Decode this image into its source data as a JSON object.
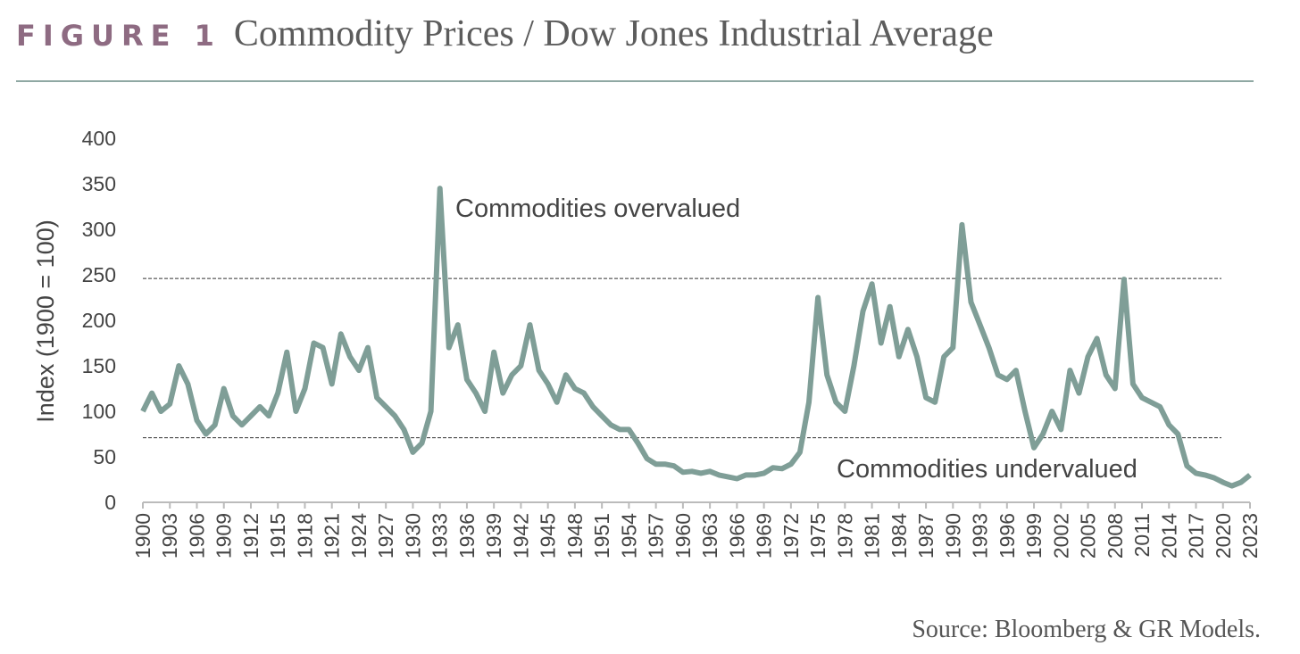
{
  "chart_data": {
    "type": "line",
    "figure_label": "FIGURE 1",
    "title": "Commodity Prices / Dow Jones Industrial Average",
    "y_label": "Index (1900 = 100)",
    "source": "Source: Bloomberg & GR Models.",
    "annotations": [
      "Commodities overvalued",
      "Commodities undervalued"
    ],
    "reference_lines": [
      246,
      71
    ],
    "color": "#7f9e97",
    "x": [
      1900,
      1901,
      1902,
      1903,
      1904,
      1905,
      1906,
      1907,
      1908,
      1909,
      1910,
      1911,
      1912,
      1913,
      1914,
      1915,
      1916,
      1917,
      1918,
      1919,
      1920,
      1921,
      1922,
      1923,
      1924,
      1925,
      1926,
      1927,
      1928,
      1929,
      1930,
      1931,
      1932,
      1933,
      1934,
      1935,
      1936,
      1937,
      1938,
      1939,
      1940,
      1941,
      1942,
      1943,
      1944,
      1945,
      1946,
      1947,
      1948,
      1949,
      1950,
      1951,
      1952,
      1953,
      1954,
      1955,
      1956,
      1957,
      1958,
      1959,
      1960,
      1961,
      1962,
      1963,
      1964,
      1965,
      1966,
      1967,
      1968,
      1969,
      1970,
      1971,
      1972,
      1973,
      1974,
      1975,
      1976,
      1977,
      1978,
      1979,
      1980,
      1981,
      1982,
      1983,
      1984,
      1985,
      1986,
      1987,
      1988,
      1989,
      1990,
      1991,
      1992,
      1993,
      1994,
      1995,
      1996,
      1997,
      1998,
      1999,
      2000,
      2001,
      2002,
      2003,
      2004,
      2005,
      2006,
      2007,
      2008,
      2009,
      2010,
      2011,
      2012,
      2013,
      2014,
      2015,
      2016,
      2017,
      2018,
      2019,
      2020,
      2021,
      2022,
      2023
    ],
    "values": [
      100,
      120,
      100,
      108,
      150,
      130,
      90,
      75,
      85,
      125,
      95,
      85,
      95,
      105,
      95,
      120,
      165,
      100,
      125,
      175,
      170,
      130,
      185,
      160,
      145,
      170,
      115,
      105,
      95,
      80,
      55,
      65,
      100,
      345,
      170,
      195,
      135,
      120,
      100,
      165,
      120,
      140,
      150,
      195,
      145,
      130,
      110,
      140,
      125,
      120,
      105,
      95,
      85,
      80,
      80,
      65,
      48,
      42,
      42,
      40,
      33,
      34,
      32,
      34,
      30,
      28,
      26,
      30,
      30,
      32,
      38,
      37,
      42,
      55,
      110,
      225,
      140,
      110,
      100,
      150,
      210,
      240,
      175,
      215,
      160,
      190,
      160,
      115,
      110,
      160,
      170,
      305,
      220,
      195,
      170,
      140,
      135,
      145,
      100,
      60,
      75,
      100,
      80,
      145,
      120,
      160,
      180,
      140,
      125,
      245,
      130,
      115,
      110,
      105,
      85,
      75,
      40,
      32,
      30,
      27,
      22,
      18,
      22,
      30
    ],
    "xlim": [
      1900,
      2023
    ],
    "xticks": [
      1900,
      1903,
      1906,
      1909,
      1912,
      1915,
      1918,
      1921,
      1924,
      1927,
      1930,
      1933,
      1936,
      1939,
      1942,
      1945,
      1948,
      1951,
      1954,
      1957,
      1960,
      1963,
      1966,
      1969,
      1972,
      1975,
      1978,
      1981,
      1984,
      1987,
      1990,
      1993,
      1996,
      1999,
      2002,
      2005,
      2008,
      2011,
      2014,
      2017,
      2020,
      2023
    ],
    "ylim": [
      0,
      400
    ],
    "yticks": [
      0,
      50,
      100,
      150,
      200,
      250,
      300,
      350,
      400
    ]
  }
}
